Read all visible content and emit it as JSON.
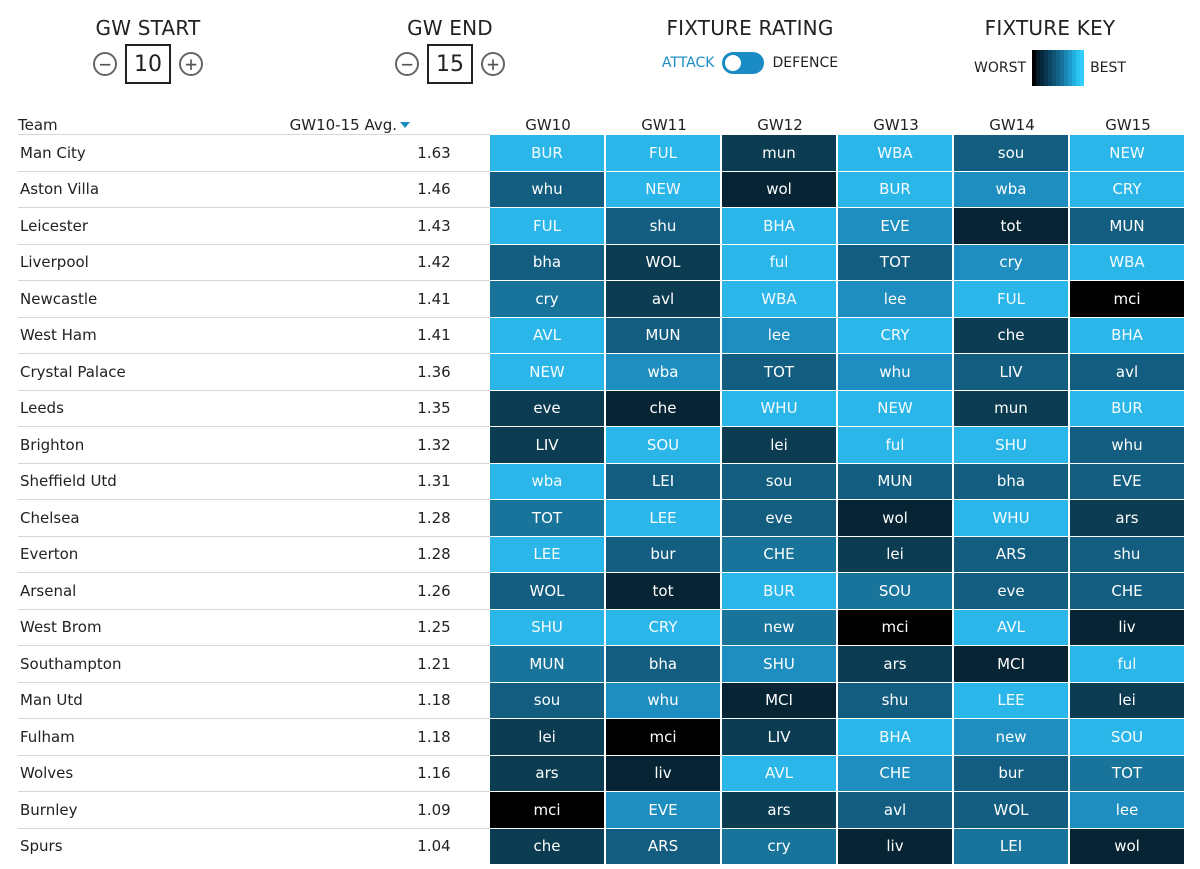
{
  "controls": {
    "gw_start": {
      "title": "GW START",
      "value": "10",
      "minus": "−",
      "plus": "+"
    },
    "gw_end": {
      "title": "GW END",
      "value": "15",
      "minus": "−",
      "plus": "+"
    },
    "fixture_rating": {
      "title": "FIXTURE RATING",
      "attack_label": "ATTACK",
      "defence_label": "DEFENCE"
    },
    "fixture_key": {
      "title": "FIXTURE KEY",
      "worst_label": "WORST",
      "best_label": "BEST",
      "scale_colors": [
        "#000000",
        "#041b29",
        "#07283c",
        "#0a3550",
        "#0d4463",
        "#105476",
        "#136389",
        "#16749c",
        "#1986b3",
        "#1d9ac9",
        "#22afdf",
        "#2ac4f2",
        "#33ccfc"
      ]
    }
  },
  "table": {
    "headers": {
      "team": "Team",
      "avg": "GW10-15 Avg.",
      "gws": [
        "GW10",
        "GW11",
        "GW12",
        "GW13",
        "GW14",
        "GW15"
      ]
    },
    "palette": {
      "0": "#000000",
      "1": "#062433",
      "2": "#0b3c52",
      "3": "#125d80",
      "4": "#19749b",
      "5": "#1e8dbf",
      "6": "#2bb6e9"
    },
    "rows": [
      {
        "team": "Man City",
        "avg": "1.63",
        "fixtures": [
          {
            "t": "BUR",
            "c": 6
          },
          {
            "t": "FUL",
            "c": 6
          },
          {
            "t": "mun",
            "c": 2
          },
          {
            "t": "WBA",
            "c": 6
          },
          {
            "t": "sou",
            "c": 3
          },
          {
            "t": "NEW",
            "c": 6
          }
        ]
      },
      {
        "team": "Aston Villa",
        "avg": "1.46",
        "fixtures": [
          {
            "t": "whu",
            "c": 3
          },
          {
            "t": "NEW",
            "c": 6
          },
          {
            "t": "wol",
            "c": 1
          },
          {
            "t": "BUR",
            "c": 6
          },
          {
            "t": "wba",
            "c": 5
          },
          {
            "t": "CRY",
            "c": 6
          }
        ]
      },
      {
        "team": "Leicester",
        "avg": "1.43",
        "fixtures": [
          {
            "t": "FUL",
            "c": 6
          },
          {
            "t": "shu",
            "c": 3
          },
          {
            "t": "BHA",
            "c": 6
          },
          {
            "t": "EVE",
            "c": 5
          },
          {
            "t": "tot",
            "c": 1
          },
          {
            "t": "MUN",
            "c": 3
          }
        ]
      },
      {
        "team": "Liverpool",
        "avg": "1.42",
        "fixtures": [
          {
            "t": "bha",
            "c": 3
          },
          {
            "t": "WOL",
            "c": 2
          },
          {
            "t": "ful",
            "c": 6
          },
          {
            "t": "TOT",
            "c": 3
          },
          {
            "t": "cry",
            "c": 5
          },
          {
            "t": "WBA",
            "c": 6
          }
        ]
      },
      {
        "team": "Newcastle",
        "avg": "1.41",
        "fixtures": [
          {
            "t": "cry",
            "c": 4
          },
          {
            "t": "avl",
            "c": 2
          },
          {
            "t": "WBA",
            "c": 6
          },
          {
            "t": "lee",
            "c": 5
          },
          {
            "t": "FUL",
            "c": 6
          },
          {
            "t": "mci",
            "c": 0
          }
        ]
      },
      {
        "team": "West Ham",
        "avg": "1.41",
        "fixtures": [
          {
            "t": "AVL",
            "c": 6
          },
          {
            "t": "MUN",
            "c": 3
          },
          {
            "t": "lee",
            "c": 5
          },
          {
            "t": "CRY",
            "c": 6
          },
          {
            "t": "che",
            "c": 2
          },
          {
            "t": "BHA",
            "c": 6
          }
        ]
      },
      {
        "team": "Crystal Palace",
        "avg": "1.36",
        "fixtures": [
          {
            "t": "NEW",
            "c": 6
          },
          {
            "t": "wba",
            "c": 5
          },
          {
            "t": "TOT",
            "c": 3
          },
          {
            "t": "whu",
            "c": 5
          },
          {
            "t": "LIV",
            "c": 3
          },
          {
            "t": "avl",
            "c": 3
          }
        ]
      },
      {
        "team": "Leeds",
        "avg": "1.35",
        "fixtures": [
          {
            "t": "eve",
            "c": 2
          },
          {
            "t": "che",
            "c": 1
          },
          {
            "t": "WHU",
            "c": 6
          },
          {
            "t": "NEW",
            "c": 6
          },
          {
            "t": "mun",
            "c": 2
          },
          {
            "t": "BUR",
            "c": 6
          }
        ]
      },
      {
        "team": "Brighton",
        "avg": "1.32",
        "fixtures": [
          {
            "t": "LIV",
            "c": 2
          },
          {
            "t": "SOU",
            "c": 6
          },
          {
            "t": "lei",
            "c": 2
          },
          {
            "t": "ful",
            "c": 6
          },
          {
            "t": "SHU",
            "c": 6
          },
          {
            "t": "whu",
            "c": 3
          }
        ]
      },
      {
        "team": "Sheffield Utd",
        "avg": "1.31",
        "fixtures": [
          {
            "t": "wba",
            "c": 6
          },
          {
            "t": "LEI",
            "c": 3
          },
          {
            "t": "sou",
            "c": 3
          },
          {
            "t": "MUN",
            "c": 3
          },
          {
            "t": "bha",
            "c": 3
          },
          {
            "t": "EVE",
            "c": 3
          }
        ]
      },
      {
        "team": "Chelsea",
        "avg": "1.28",
        "fixtures": [
          {
            "t": "TOT",
            "c": 4
          },
          {
            "t": "LEE",
            "c": 6
          },
          {
            "t": "eve",
            "c": 3
          },
          {
            "t": "wol",
            "c": 1
          },
          {
            "t": "WHU",
            "c": 6
          },
          {
            "t": "ars",
            "c": 2
          }
        ]
      },
      {
        "team": "Everton",
        "avg": "1.28",
        "fixtures": [
          {
            "t": "LEE",
            "c": 6
          },
          {
            "t": "bur",
            "c": 3
          },
          {
            "t": "CHE",
            "c": 4
          },
          {
            "t": "lei",
            "c": 2
          },
          {
            "t": "ARS",
            "c": 3
          },
          {
            "t": "shu",
            "c": 3
          }
        ]
      },
      {
        "team": "Arsenal",
        "avg": "1.26",
        "fixtures": [
          {
            "t": "WOL",
            "c": 3
          },
          {
            "t": "tot",
            "c": 1
          },
          {
            "t": "BUR",
            "c": 6
          },
          {
            "t": "SOU",
            "c": 4
          },
          {
            "t": "eve",
            "c": 3
          },
          {
            "t": "CHE",
            "c": 3
          }
        ]
      },
      {
        "team": "West Brom",
        "avg": "1.25",
        "fixtures": [
          {
            "t": "SHU",
            "c": 6
          },
          {
            "t": "CRY",
            "c": 6
          },
          {
            "t": "new",
            "c": 4
          },
          {
            "t": "mci",
            "c": 0
          },
          {
            "t": "AVL",
            "c": 6
          },
          {
            "t": "liv",
            "c": 1
          }
        ]
      },
      {
        "team": "Southampton",
        "avg": "1.21",
        "fixtures": [
          {
            "t": "MUN",
            "c": 4
          },
          {
            "t": "bha",
            "c": 3
          },
          {
            "t": "SHU",
            "c": 5
          },
          {
            "t": "ars",
            "c": 2
          },
          {
            "t": "MCI",
            "c": 1
          },
          {
            "t": "ful",
            "c": 6
          }
        ]
      },
      {
        "team": "Man Utd",
        "avg": "1.18",
        "fixtures": [
          {
            "t": "sou",
            "c": 3
          },
          {
            "t": "whu",
            "c": 5
          },
          {
            "t": "MCI",
            "c": 1
          },
          {
            "t": "shu",
            "c": 3
          },
          {
            "t": "LEE",
            "c": 6
          },
          {
            "t": "lei",
            "c": 2
          }
        ]
      },
      {
        "team": "Fulham",
        "avg": "1.18",
        "fixtures": [
          {
            "t": "lei",
            "c": 2
          },
          {
            "t": "mci",
            "c": 0
          },
          {
            "t": "LIV",
            "c": 2
          },
          {
            "t": "BHA",
            "c": 6
          },
          {
            "t": "new",
            "c": 5
          },
          {
            "t": "SOU",
            "c": 6
          }
        ]
      },
      {
        "team": "Wolves",
        "avg": "1.16",
        "fixtures": [
          {
            "t": "ars",
            "c": 2
          },
          {
            "t": "liv",
            "c": 1
          },
          {
            "t": "AVL",
            "c": 6
          },
          {
            "t": "CHE",
            "c": 5
          },
          {
            "t": "bur",
            "c": 3
          },
          {
            "t": "TOT",
            "c": 4
          }
        ]
      },
      {
        "team": "Burnley",
        "avg": "1.09",
        "fixtures": [
          {
            "t": "mci",
            "c": 0
          },
          {
            "t": "EVE",
            "c": 5
          },
          {
            "t": "ars",
            "c": 2
          },
          {
            "t": "avl",
            "c": 3
          },
          {
            "t": "WOL",
            "c": 3
          },
          {
            "t": "lee",
            "c": 5
          }
        ]
      },
      {
        "team": "Spurs",
        "avg": "1.04",
        "fixtures": [
          {
            "t": "che",
            "c": 2
          },
          {
            "t": "ARS",
            "c": 3
          },
          {
            "t": "cry",
            "c": 4
          },
          {
            "t": "liv",
            "c": 1
          },
          {
            "t": "LEI",
            "c": 4
          },
          {
            "t": "wol",
            "c": 1
          }
        ]
      }
    ]
  }
}
